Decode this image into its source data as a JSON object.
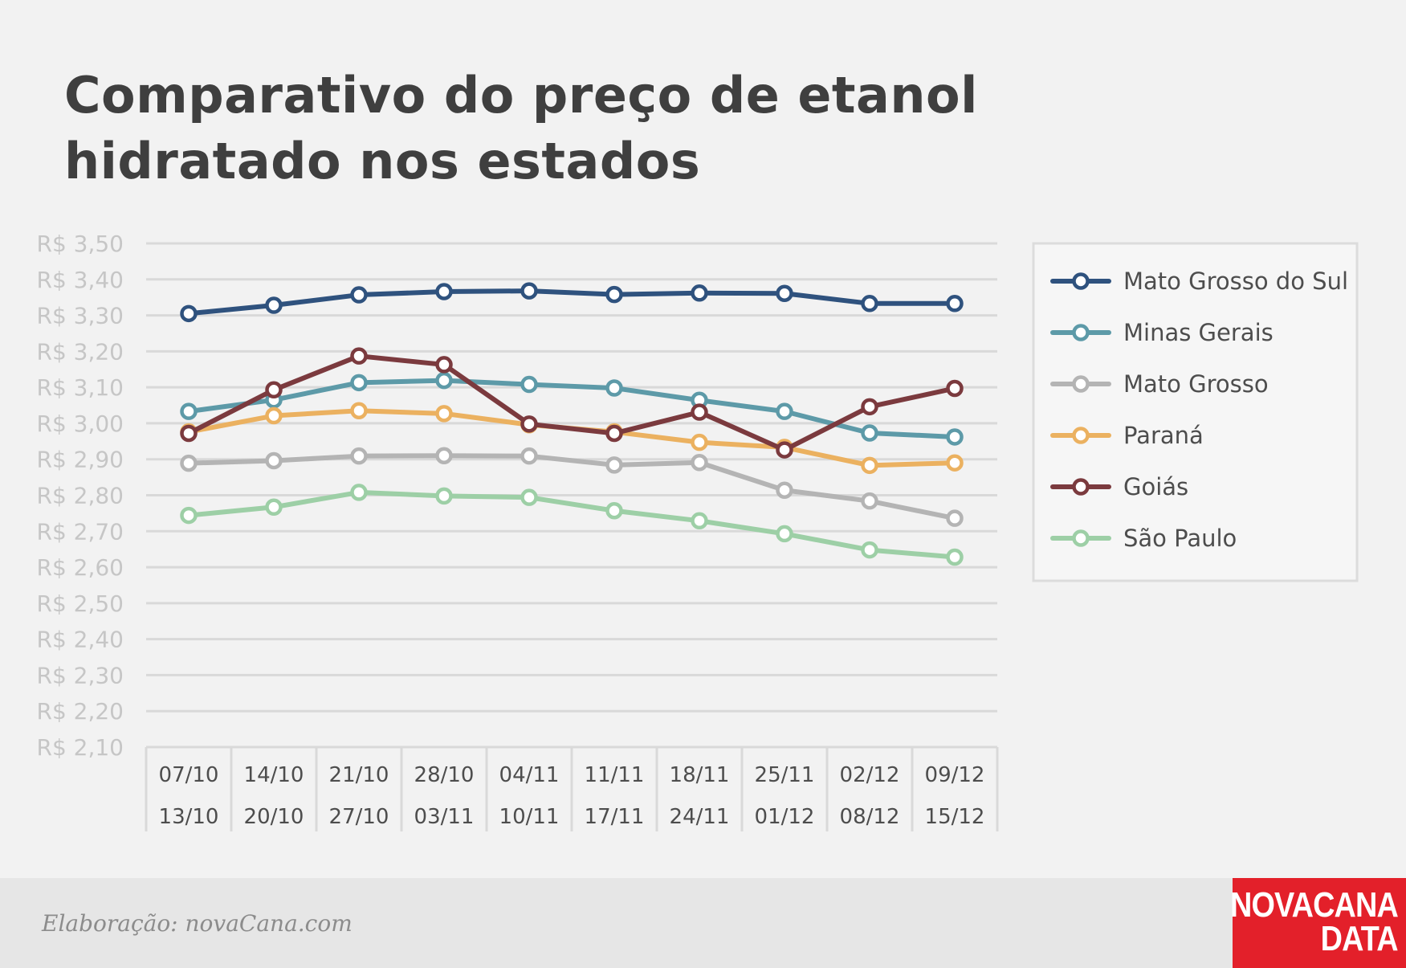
{
  "title": "Comparativo do preço de etanol hidratado nos estados",
  "footer": {
    "credit": "Elaboração: novaCana.com"
  },
  "logo": {
    "line1": "NOVACANA",
    "line2": "DATA"
  },
  "chart_data": {
    "type": "line",
    "title": "Comparativo do preço de etanol hidratado nos estados",
    "xlabel": "",
    "ylabel": "",
    "ylim": [
      2.1,
      3.5
    ],
    "yticks": [
      "R$ 3,50",
      "R$ 3,40",
      "R$ 3,30",
      "R$ 3,20",
      "R$ 3,10",
      "R$ 3,00",
      "R$ 2,90",
      "R$ 2,80",
      "R$ 2,70",
      "R$ 2,60",
      "R$ 2,50",
      "R$ 2,40",
      "R$ 2,30",
      "R$ 2,20",
      "R$ 2,10"
    ],
    "categories": [
      {
        "start": "07/10",
        "end": "13/10"
      },
      {
        "start": "14/10",
        "end": "20/10"
      },
      {
        "start": "21/10",
        "end": "27/10"
      },
      {
        "start": "28/10",
        "end": "03/11"
      },
      {
        "start": "04/11",
        "end": "10/11"
      },
      {
        "start": "11/11",
        "end": "17/11"
      },
      {
        "start": "18/11",
        "end": "24/11"
      },
      {
        "start": "25/11",
        "end": "01/12"
      },
      {
        "start": "02/12",
        "end": "08/12"
      },
      {
        "start": "09/12",
        "end": "15/12"
      }
    ],
    "grid": true,
    "legend": "right",
    "series": [
      {
        "name": "Mato Grosso do Sul",
        "color": "#2f527e",
        "values": [
          3.305,
          3.328,
          3.357,
          3.366,
          3.368,
          3.358,
          3.362,
          3.361,
          3.333,
          3.333
        ]
      },
      {
        "name": "Minas Gerais",
        "color": "#5d9aa8",
        "values": [
          3.033,
          3.065,
          3.113,
          3.119,
          3.108,
          3.098,
          3.064,
          3.033,
          2.973,
          2.962
        ]
      },
      {
        "name": "Mato Grosso",
        "color": "#b4b4b4",
        "values": [
          2.889,
          2.896,
          2.909,
          2.91,
          2.909,
          2.884,
          2.891,
          2.814,
          2.784,
          2.736
        ]
      },
      {
        "name": "Paraná",
        "color": "#ebb160",
        "values": [
          2.976,
          3.021,
          3.035,
          3.027,
          2.996,
          2.976,
          2.947,
          2.933,
          2.883,
          2.89
        ]
      },
      {
        "name": "Goiás",
        "color": "#7b3a3e",
        "values": [
          2.972,
          3.093,
          3.187,
          3.163,
          2.998,
          2.972,
          3.031,
          2.926,
          3.046,
          3.097
        ]
      },
      {
        "name": "São Paulo",
        "color": "#9dcfa6",
        "values": [
          2.744,
          2.767,
          2.808,
          2.798,
          2.794,
          2.757,
          2.729,
          2.693,
          2.648,
          2.628
        ]
      }
    ]
  }
}
